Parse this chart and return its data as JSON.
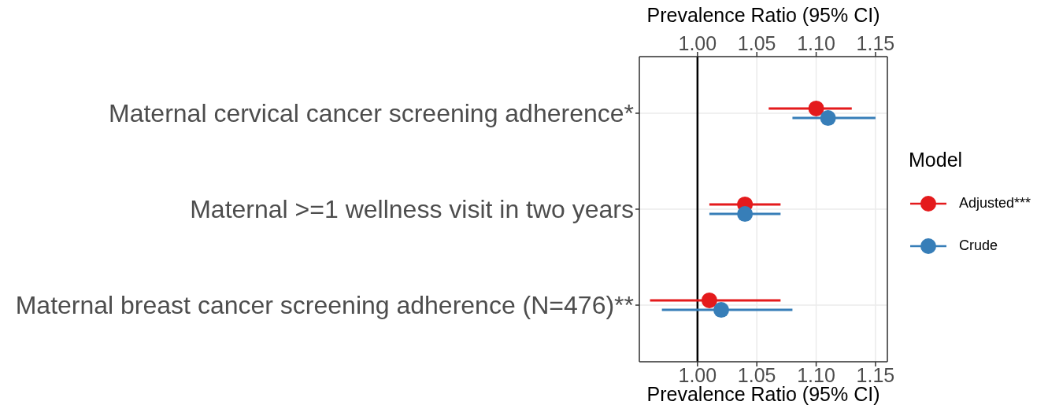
{
  "chart_data": {
    "type": "scatter",
    "orientation": "horizontal",
    "categories": [
      "Maternal cervical cancer screening adherence*",
      "Maternal >=1 wellness visit in two years",
      "Maternal breast cancer screening adherence (N=476)**"
    ],
    "xlabel": "Prevalence Ratio (95% CI)",
    "x2label": "Prevalence Ratio (95% CI)",
    "xlim": [
      0.951,
      1.16
    ],
    "xticks": [
      {
        "value": 1,
        "label": "1.00"
      },
      {
        "value": 1.05,
        "label": "1.05"
      },
      {
        "value": 1.1,
        "label": "1.10"
      },
      {
        "value": 1.15,
        "label": "1.15"
      }
    ],
    "x2lim": [
      0.951,
      1.16
    ],
    "x2ticks": [
      {
        "value": 1,
        "label": "1.00"
      },
      {
        "value": 1.05,
        "label": "1.05"
      },
      {
        "value": 1.1,
        "label": "1.10"
      },
      {
        "value": 1.15,
        "label": "1.15"
      }
    ],
    "legend_title": "Model",
    "legend": "right",
    "grid": true,
    "marker": "circle",
    "ref_lines": [
      {
        "axis": "x",
        "value": 1,
        "color": "#000000"
      }
    ],
    "series": [
      {
        "name": "Adjusted***",
        "color": "#e41a1c",
        "values": [
          1.1,
          1.04,
          1.01
        ],
        "errors": [
          [
            1.06,
            1.13
          ],
          [
            1.01,
            1.07
          ],
          [
            0.96,
            1.07
          ]
        ]
      },
      {
        "name": "Crude",
        "color": "#377eb8",
        "values": [
          1.11,
          1.04,
          1.02
        ],
        "errors": [
          [
            1.08,
            1.15
          ],
          [
            1.01,
            1.07
          ],
          [
            0.97,
            1.08
          ]
        ]
      }
    ]
  }
}
